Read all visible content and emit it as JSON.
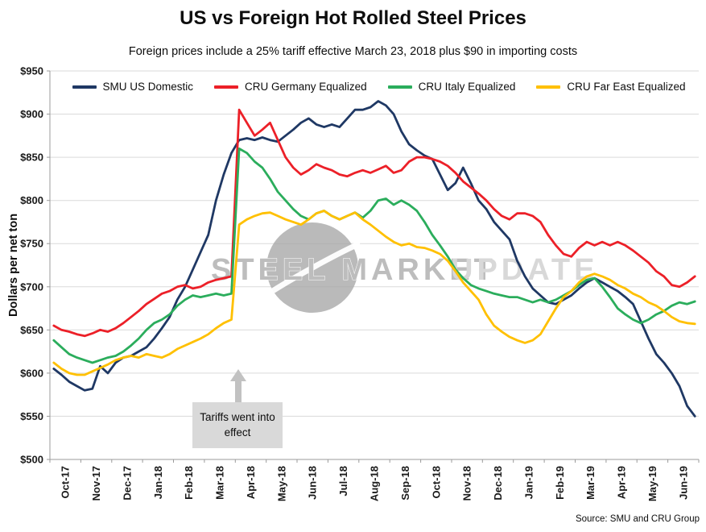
{
  "chart_data": {
    "type": "line",
    "title": "US vs Foreign Hot Rolled Steel Prices",
    "subtitle": "Foreign prices include a 25% tariff effective March 23, 2018 plus $90 in importing costs",
    "ylabel": "Dollars per net ton",
    "ylim": [
      500,
      950
    ],
    "y_tick_step": 50,
    "y_tick_labels": [
      "$500",
      "$550",
      "$600",
      "$650",
      "$700",
      "$750",
      "$800",
      "$850",
      "$900",
      "$950"
    ],
    "x_tick_labels": [
      "Oct-17",
      "Nov-17",
      "Dec-17",
      "Jan-18",
      "Feb-18",
      "Mar-18",
      "Apr-18",
      "May-18",
      "Jun-18",
      "Jul-18",
      "Aug-18",
      "Sep-18",
      "Oct-18",
      "Nov-18",
      "Dec-18",
      "Jan-19",
      "Feb-19",
      "Mar-19",
      "Apr-19",
      "May-19",
      "Jun-19"
    ],
    "points_per_month": 4,
    "grid": true,
    "legend_position": "top",
    "series": [
      {
        "name": "SMU US Domestic",
        "color": "#1f3864",
        "values": [
          605,
          598,
          590,
          585,
          580,
          582,
          608,
          600,
          612,
          618,
          620,
          625,
          630,
          640,
          652,
          665,
          685,
          700,
          720,
          740,
          760,
          800,
          830,
          855,
          870,
          872,
          870,
          873,
          870,
          868,
          875,
          882,
          890,
          895,
          888,
          885,
          888,
          885,
          895,
          905,
          905,
          908,
          915,
          910,
          900,
          880,
          865,
          858,
          852,
          848,
          830,
          812,
          820,
          838,
          820,
          800,
          790,
          775,
          765,
          755,
          730,
          712,
          698,
          690,
          682,
          680,
          685,
          690,
          698,
          705,
          710,
          705,
          700,
          695,
          688,
          680,
          660,
          640,
          622,
          612,
          600,
          585,
          562,
          550
        ]
      },
      {
        "name": "CRU Germany Equalized",
        "color": "#ec2028",
        "values": [
          655,
          650,
          648,
          645,
          643,
          646,
          650,
          648,
          652,
          658,
          665,
          672,
          680,
          686,
          692,
          695,
          700,
          702,
          698,
          700,
          705,
          708,
          710,
          712,
          905,
          890,
          875,
          882,
          890,
          870,
          850,
          838,
          830,
          835,
          842,
          838,
          835,
          830,
          828,
          832,
          835,
          832,
          836,
          840,
          832,
          835,
          845,
          850,
          850,
          848,
          845,
          840,
          832,
          822,
          815,
          808,
          800,
          790,
          782,
          778,
          785,
          785,
          782,
          775,
          760,
          748,
          738,
          735,
          745,
          752,
          748,
          752,
          748,
          752,
          748,
          742,
          735,
          728,
          718,
          712,
          702,
          700,
          705,
          712
        ]
      },
      {
        "name": "CRU Italy Equalized",
        "color": "#2bad5c",
        "values": [
          638,
          630,
          622,
          618,
          615,
          612,
          615,
          618,
          620,
          625,
          632,
          640,
          650,
          658,
          662,
          668,
          678,
          685,
          690,
          688,
          690,
          692,
          690,
          692,
          860,
          855,
          845,
          838,
          825,
          810,
          800,
          790,
          782,
          778,
          785,
          788,
          782,
          778,
          782,
          786,
          780,
          788,
          800,
          802,
          795,
          800,
          795,
          788,
          775,
          760,
          748,
          735,
          720,
          710,
          702,
          698,
          695,
          692,
          690,
          688,
          688,
          685,
          682,
          685,
          682,
          685,
          690,
          695,
          702,
          708,
          710,
          700,
          688,
          675,
          668,
          662,
          658,
          662,
          668,
          672,
          678,
          682,
          680,
          683
        ]
      },
      {
        "name": "CRU Far East Equalized",
        "color": "#ffc000",
        "values": [
          612,
          605,
          600,
          598,
          598,
          602,
          606,
          610,
          615,
          618,
          620,
          618,
          622,
          620,
          618,
          622,
          628,
          632,
          636,
          640,
          645,
          652,
          658,
          662,
          772,
          778,
          782,
          785,
          786,
          782,
          778,
          775,
          772,
          778,
          785,
          788,
          782,
          778,
          782,
          786,
          778,
          772,
          765,
          758,
          752,
          748,
          750,
          746,
          745,
          742,
          738,
          730,
          718,
          705,
          695,
          685,
          668,
          655,
          648,
          642,
          638,
          635,
          638,
          645,
          660,
          675,
          688,
          695,
          705,
          712,
          715,
          712,
          708,
          702,
          698,
          692,
          688,
          682,
          678,
          672,
          665,
          660,
          658,
          657
        ]
      }
    ],
    "annotation": {
      "text": "Tariffs went into effect",
      "arrow": "up",
      "near_month": "Mar-18"
    },
    "watermark": {
      "line1": "STEEL MARKET",
      "line2": "UPDATE"
    },
    "source": "Source: SMU and CRU Group"
  }
}
